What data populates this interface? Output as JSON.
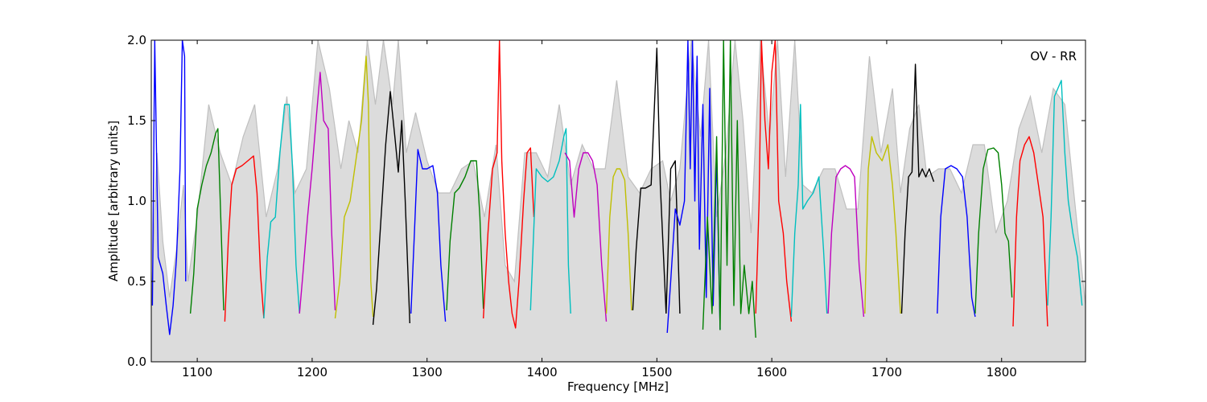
{
  "chart_data": {
    "type": "line",
    "title": "",
    "annotation": "OV - RR",
    "xlabel": "Frequency [MHz]",
    "ylabel": "Amplitude [arbitrary units]",
    "xlim": [
      1060,
      1873
    ],
    "ylim": [
      0.0,
      2.0
    ],
    "grid": false,
    "x_ticks": [
      1100,
      1200,
      1300,
      1400,
      1500,
      1600,
      1700,
      1800
    ],
    "x_tick_labels": [
      "1100",
      "1200",
      "1300",
      "1400",
      "1500",
      "1600",
      "1700",
      "1800"
    ],
    "y_ticks": [
      0.0,
      0.5,
      1.0,
      1.5,
      2.0
    ],
    "y_tick_labels": [
      "0.0",
      "0.5",
      "1.0",
      "1.5",
      "2.0"
    ],
    "colors": {
      "envelope": "#bfbfbf",
      "blue": "#0000ff",
      "green": "#008000",
      "red": "#ff0000",
      "cyan": "#00bfbf",
      "magenta": "#bf00bf",
      "olive": "#bfbf00",
      "black": "#000000"
    },
    "envelope": {
      "x": [
        1060,
        1065,
        1070,
        1076,
        1082,
        1088,
        1092,
        1100,
        1110,
        1120,
        1130,
        1140,
        1150,
        1160,
        1170,
        1178,
        1185,
        1195,
        1205,
        1215,
        1225,
        1232,
        1240,
        1248,
        1255,
        1262,
        1270,
        1275,
        1282,
        1290,
        1300,
        1310,
        1320,
        1330,
        1340,
        1350,
        1360,
        1368,
        1376,
        1385,
        1395,
        1405,
        1415,
        1425,
        1435,
        1445,
        1455,
        1465,
        1475,
        1485,
        1495,
        1505,
        1512,
        1520,
        1530,
        1538,
        1545,
        1552,
        1560,
        1568,
        1575,
        1582,
        1590,
        1598,
        1605,
        1612,
        1620,
        1627,
        1635,
        1645,
        1655,
        1665,
        1675,
        1685,
        1695,
        1705,
        1712,
        1720,
        1728,
        1735,
        1745,
        1755,
        1765,
        1775,
        1785,
        1795,
        1805,
        1815,
        1825,
        1835,
        1845,
        1855,
        1865,
        1873
      ],
      "y": [
        0.35,
        1.3,
        0.75,
        0.4,
        0.7,
        1.1,
        0.5,
        0.9,
        1.6,
        1.3,
        1.1,
        1.4,
        1.6,
        0.9,
        1.2,
        1.65,
        1.05,
        1.2,
        2.0,
        1.7,
        1.2,
        1.5,
        1.3,
        2.0,
        1.6,
        2.0,
        1.6,
        2.0,
        1.3,
        1.55,
        1.25,
        1.05,
        1.05,
        1.2,
        1.25,
        0.9,
        1.35,
        0.6,
        0.5,
        1.3,
        1.3,
        1.15,
        1.6,
        1.1,
        1.35,
        1.2,
        1.2,
        1.75,
        1.15,
        1.05,
        1.2,
        1.25,
        1.0,
        1.2,
        2.0,
        1.4,
        2.0,
        0.9,
        1.3,
        2.0,
        1.5,
        0.8,
        2.0,
        1.4,
        2.0,
        1.15,
        2.0,
        1.1,
        1.05,
        1.2,
        1.2,
        0.95,
        0.95,
        1.9,
        1.3,
        1.7,
        1.05,
        1.45,
        1.6,
        1.15,
        1.2,
        1.2,
        1.05,
        1.35,
        1.35,
        0.8,
        1.0,
        1.45,
        1.65,
        1.3,
        1.7,
        1.6,
        0.9,
        0.35
      ]
    },
    "series": [
      {
        "color": "blue",
        "x": [
          1061,
          1063,
          1066,
          1070,
          1073,
          1076,
          1079,
          1082,
          1085,
          1087,
          1089,
          1090
        ],
        "y": [
          0.35,
          2.0,
          0.65,
          0.55,
          0.35,
          0.17,
          0.35,
          0.65,
          1.2,
          2.0,
          1.9,
          0.5
        ]
      },
      {
        "color": "green",
        "x": [
          1094,
          1097,
          1100,
          1104,
          1108,
          1112,
          1116,
          1118,
          1120,
          1123
        ],
        "y": [
          0.3,
          0.55,
          0.95,
          1.1,
          1.22,
          1.3,
          1.42,
          1.45,
          1.0,
          0.32
        ]
      },
      {
        "color": "red",
        "x": [
          1124,
          1127,
          1130,
          1134,
          1139,
          1144,
          1149,
          1152,
          1155,
          1158
        ],
        "y": [
          0.25,
          0.75,
          1.1,
          1.2,
          1.22,
          1.25,
          1.28,
          1.05,
          0.55,
          0.27
        ]
      },
      {
        "color": "cyan",
        "x": [
          1158,
          1161,
          1164,
          1168,
          1172,
          1176,
          1180,
          1183,
          1186,
          1189
        ],
        "y": [
          0.27,
          0.65,
          0.87,
          0.9,
          1.3,
          1.6,
          1.6,
          1.2,
          0.6,
          0.3
        ]
      },
      {
        "color": "magenta",
        "x": [
          1189,
          1192,
          1196,
          1200,
          1204,
          1207,
          1210,
          1214,
          1217,
          1220
        ],
        "y": [
          0.3,
          0.55,
          0.9,
          1.2,
          1.55,
          1.8,
          1.5,
          1.45,
          0.8,
          0.32
        ]
      },
      {
        "color": "olive",
        "x": [
          1220,
          1224,
          1228,
          1233,
          1238,
          1243,
          1247,
          1249,
          1251,
          1253
        ],
        "y": [
          0.27,
          0.5,
          0.9,
          1.0,
          1.25,
          1.5,
          1.9,
          1.6,
          0.5,
          0.28
        ]
      },
      {
        "color": "black",
        "x": [
          1253,
          1256,
          1260,
          1264,
          1268,
          1272,
          1275,
          1278,
          1281,
          1285
        ],
        "y": [
          0.23,
          0.45,
          0.9,
          1.35,
          1.68,
          1.4,
          1.18,
          1.5,
          1.0,
          0.24
        ]
      },
      {
        "color": "blue",
        "x": [
          1286,
          1289,
          1292,
          1296,
          1300,
          1305,
          1309,
          1312,
          1316
        ],
        "y": [
          0.3,
          0.8,
          1.32,
          1.2,
          1.2,
          1.22,
          1.05,
          0.6,
          0.25
        ]
      },
      {
        "color": "green",
        "x": [
          1317,
          1320,
          1324,
          1328,
          1333,
          1338,
          1343,
          1346,
          1349
        ],
        "y": [
          0.32,
          0.75,
          1.05,
          1.08,
          1.15,
          1.25,
          1.25,
          0.9,
          0.33
        ]
      },
      {
        "color": "red",
        "x": [
          1349,
          1353,
          1357,
          1361,
          1363,
          1365,
          1368,
          1371,
          1374,
          1377,
          1380,
          1384,
          1387,
          1390,
          1393
        ],
        "y": [
          0.27,
          0.8,
          1.2,
          1.3,
          2.0,
          1.25,
          0.8,
          0.5,
          0.3,
          0.21,
          0.5,
          1.0,
          1.3,
          1.33,
          0.9
        ]
      },
      {
        "color": "cyan",
        "x": [
          1390,
          1395,
          1400,
          1405,
          1410,
          1415,
          1419,
          1421,
          1423,
          1425
        ],
        "y": [
          0.32,
          1.2,
          1.15,
          1.12,
          1.15,
          1.25,
          1.4,
          1.45,
          0.6,
          0.3
        ]
      },
      {
        "color": "magenta",
        "x": [
          1420,
          1424,
          1428,
          1432,
          1436,
          1440,
          1444,
          1448,
          1452,
          1456
        ],
        "y": [
          1.3,
          1.25,
          0.9,
          1.2,
          1.3,
          1.3,
          1.25,
          1.1,
          0.6,
          0.25
        ]
      },
      {
        "color": "olive",
        "x": [
          1456,
          1459,
          1462,
          1465,
          1468,
          1472,
          1475,
          1478
        ],
        "y": [
          0.3,
          0.9,
          1.15,
          1.2,
          1.2,
          1.13,
          0.8,
          0.32
        ]
      },
      {
        "color": "black",
        "x": [
          1479,
          1482,
          1486,
          1490,
          1495,
          1500,
          1503,
          1508
        ],
        "y": [
          0.32,
          0.7,
          1.08,
          1.08,
          1.1,
          1.95,
          1.1,
          0.3
        ]
      },
      {
        "color": "black",
        "x": [
          1508,
          1512,
          1516,
          1518,
          1520
        ],
        "y": [
          0.3,
          1.2,
          1.25,
          0.8,
          0.3
        ]
      },
      {
        "color": "blue",
        "x": [
          1509,
          1512,
          1516,
          1520,
          1524,
          1527,
          1529,
          1531,
          1533,
          1535,
          1537,
          1540,
          1543,
          1546,
          1549,
          1552,
          1555
        ],
        "y": [
          0.18,
          0.5,
          0.95,
          0.85,
          1.0,
          2.0,
          1.2,
          2.0,
          1.0,
          1.9,
          0.7,
          1.6,
          0.4,
          1.7,
          0.35,
          1.3,
          0.2
        ]
      },
      {
        "color": "green",
        "x": [
          1540,
          1544,
          1548,
          1552,
          1555,
          1558,
          1561,
          1564,
          1567,
          1570,
          1573,
          1576,
          1580,
          1583,
          1586
        ],
        "y": [
          0.2,
          0.9,
          0.3,
          1.4,
          0.2,
          2.0,
          0.6,
          2.0,
          0.35,
          1.5,
          0.3,
          0.6,
          0.3,
          0.5,
          0.15
        ]
      },
      {
        "color": "red",
        "x": [
          1586,
          1589,
          1591,
          1594,
          1597,
          1600,
          1603,
          1606,
          1610,
          1613,
          1617
        ],
        "y": [
          0.3,
          1.0,
          2.0,
          1.5,
          1.2,
          1.8,
          2.0,
          1.0,
          0.8,
          0.5,
          0.25
        ]
      },
      {
        "color": "cyan",
        "x": [
          1617,
          1620,
          1623,
          1625,
          1627,
          1631,
          1636,
          1641,
          1645,
          1648
        ],
        "y": [
          0.28,
          0.8,
          1.1,
          1.6,
          0.95,
          1.0,
          1.05,
          1.15,
          0.7,
          0.3
        ]
      },
      {
        "color": "magenta",
        "x": [
          1649,
          1652,
          1656,
          1660,
          1664,
          1668,
          1672,
          1676,
          1680
        ],
        "y": [
          0.3,
          0.8,
          1.15,
          1.2,
          1.22,
          1.2,
          1.15,
          0.6,
          0.28
        ]
      },
      {
        "color": "olive",
        "x": [
          1681,
          1684,
          1687,
          1691,
          1696,
          1701,
          1705,
          1708,
          1712
        ],
        "y": [
          0.3,
          1.2,
          1.4,
          1.3,
          1.25,
          1.35,
          1.1,
          0.8,
          0.3
        ]
      },
      {
        "color": "black",
        "x": [
          1713,
          1716,
          1719,
          1722,
          1725,
          1728,
          1731,
          1734,
          1737,
          1741
        ],
        "y": [
          0.3,
          0.8,
          1.15,
          1.18,
          1.85,
          1.15,
          1.2,
          1.15,
          1.2,
          1.12
        ]
      },
      {
        "color": "blue",
        "x": [
          1744,
          1747,
          1751,
          1756,
          1761,
          1766,
          1770,
          1774,
          1777
        ],
        "y": [
          0.3,
          0.9,
          1.2,
          1.22,
          1.2,
          1.15,
          0.9,
          0.4,
          0.28
        ]
      },
      {
        "color": "green",
        "x": [
          1777,
          1780,
          1784,
          1788,
          1793,
          1797,
          1800,
          1803,
          1806,
          1809
        ],
        "y": [
          0.3,
          0.8,
          1.2,
          1.32,
          1.33,
          1.3,
          1.1,
          0.8,
          0.75,
          0.4
        ]
      },
      {
        "color": "red",
        "x": [
          1810,
          1813,
          1816,
          1820,
          1824,
          1828,
          1832,
          1836,
          1840
        ],
        "y": [
          0.22,
          0.9,
          1.25,
          1.35,
          1.4,
          1.3,
          1.1,
          0.9,
          0.22
        ]
      },
      {
        "color": "cyan",
        "x": [
          1840,
          1843,
          1846,
          1849,
          1852,
          1855,
          1858,
          1862,
          1866,
          1870
        ],
        "y": [
          0.35,
          0.9,
          1.65,
          1.7,
          1.75,
          1.3,
          1.0,
          0.8,
          0.65,
          0.35
        ]
      }
    ]
  }
}
